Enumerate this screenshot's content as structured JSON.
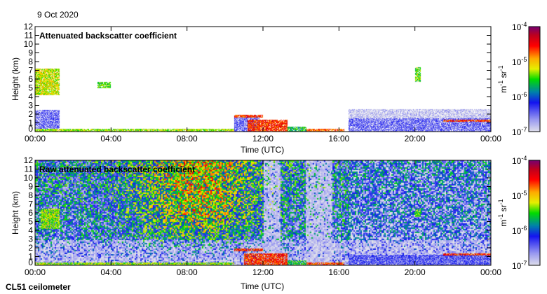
{
  "date": "9 Oct 2020",
  "instrument": "CL51 ceilometer",
  "colors": {
    "frame": "#000000",
    "background": "#ffffff"
  },
  "chart_data": [
    {
      "type": "heatmap",
      "title": "Attenuated backscatter coefficient",
      "xlabel": "Time (UTC)",
      "ylabel": "Height (km)",
      "xlim": [
        0,
        24
      ],
      "ylim": [
        0,
        12
      ],
      "xticks": [
        0,
        4,
        8,
        12,
        16,
        20,
        24
      ],
      "xtick_labels": [
        "00:00",
        "04:00",
        "08:00",
        "12:00",
        "16:00",
        "20:00",
        "00:00"
      ],
      "yticks": [
        0,
        1,
        2,
        3,
        4,
        5,
        6,
        7,
        8,
        9,
        10,
        11,
        12
      ],
      "ytick_labels": [
        "0",
        "1",
        "2",
        "3",
        "4",
        "5",
        "6",
        "7",
        "8",
        "9",
        "10",
        "11",
        "12"
      ],
      "colorbar": {
        "label": "m-1 sr-1",
        "log_range": [
          -7,
          -4
        ],
        "tick_labels": [
          "10-4",
          "10-5",
          "10-6",
          "10-7"
        ]
      },
      "noise": false,
      "features": [
        {
          "t": [
            0.0,
            1.3
          ],
          "h": [
            4.2,
            7.2
          ],
          "log_value": -5.2
        },
        {
          "t": [
            3.3,
            4.0
          ],
          "h": [
            5.0,
            5.7
          ],
          "log_value": -5.4
        },
        {
          "t": [
            20.0,
            20.3
          ],
          "h": [
            5.7,
            7.4
          ],
          "log_value": -5.4
        },
        {
          "t": [
            0.0,
            1.3
          ],
          "h": [
            0.3,
            2.5
          ],
          "log_value": -6.5
        },
        {
          "t": [
            0.0,
            10.5
          ],
          "h": [
            0.0,
            0.3
          ],
          "log_value": -5.3
        },
        {
          "t": [
            10.5,
            11.8
          ],
          "h": [
            0.0,
            1.8
          ],
          "log_value": -6.5
        },
        {
          "t": [
            10.5,
            12.0
          ],
          "h": [
            1.6,
            1.9
          ],
          "log_value": -4.6
        },
        {
          "t": [
            11.2,
            13.3
          ],
          "h": [
            0.0,
            1.4
          ],
          "log_value": -4.6
        },
        {
          "t": [
            13.3,
            14.3
          ],
          "h": [
            0.0,
            0.6
          ],
          "log_value": -5.6
        },
        {
          "t": [
            14.3,
            16.3
          ],
          "h": [
            0.0,
            0.3
          ],
          "log_value": -4.7
        },
        {
          "t": [
            16.5,
            24.0
          ],
          "h": [
            0.0,
            1.5
          ],
          "log_value": -6.5
        },
        {
          "t": [
            16.5,
            24.0
          ],
          "h": [
            1.5,
            2.6
          ],
          "log_value": -6.9
        },
        {
          "t": [
            21.5,
            24.0
          ],
          "h": [
            1.15,
            1.35
          ],
          "log_value": -4.6
        }
      ]
    },
    {
      "type": "heatmap",
      "title": "Raw attenuated backscatter coefficient",
      "xlabel": "Time (UTC)",
      "ylabel": "Height (km)",
      "xlim": [
        0,
        24
      ],
      "ylim": [
        0,
        12
      ],
      "xticks": [
        0,
        4,
        8,
        12,
        16,
        20,
        24
      ],
      "xtick_labels": [
        "00:00",
        "04:00",
        "08:00",
        "12:00",
        "16:00",
        "20:00",
        "00:00"
      ],
      "yticks": [
        0,
        1,
        2,
        3,
        4,
        5,
        6,
        7,
        8,
        9,
        10,
        11,
        12
      ],
      "ytick_labels": [
        "0",
        "1",
        "2",
        "3",
        "4",
        "5",
        "6",
        "7",
        "8",
        "9",
        "10",
        "11",
        "12"
      ],
      "colorbar": {
        "label": "m-1 sr-1",
        "log_range": [
          -7,
          -4
        ],
        "tick_labels": [
          "10-4",
          "10-5",
          "10-6",
          "10-7"
        ]
      },
      "noise": true,
      "noise_gaps": [
        [
          12.0,
          12.9
        ],
        [
          14.2,
          15.6
        ]
      ],
      "features": [
        {
          "t": [
            0.3,
            1.3
          ],
          "h": [
            4.2,
            6.5
          ],
          "log_value": -5.3
        },
        {
          "t": [
            20.0,
            20.3
          ],
          "h": [
            5.5,
            6.5
          ],
          "log_value": -5.5
        },
        {
          "t": [
            0.0,
            10.5
          ],
          "h": [
            0.0,
            0.3
          ],
          "log_value": -5.3
        },
        {
          "t": [
            10.5,
            12.0
          ],
          "h": [
            1.6,
            1.9
          ],
          "log_value": -4.6
        },
        {
          "t": [
            11.0,
            13.3
          ],
          "h": [
            0.0,
            1.4
          ],
          "log_value": -4.6
        },
        {
          "t": [
            13.3,
            14.3
          ],
          "h": [
            0.0,
            0.6
          ],
          "log_value": -5.6
        },
        {
          "t": [
            14.3,
            16.3
          ],
          "h": [
            0.0,
            0.3
          ],
          "log_value": -4.7
        },
        {
          "t": [
            16.5,
            24.0
          ],
          "h": [
            0.0,
            1.2
          ],
          "log_value": -6.4
        },
        {
          "t": [
            21.5,
            24.0
          ],
          "h": [
            1.15,
            1.35
          ],
          "log_value": -4.6
        }
      ]
    }
  ]
}
